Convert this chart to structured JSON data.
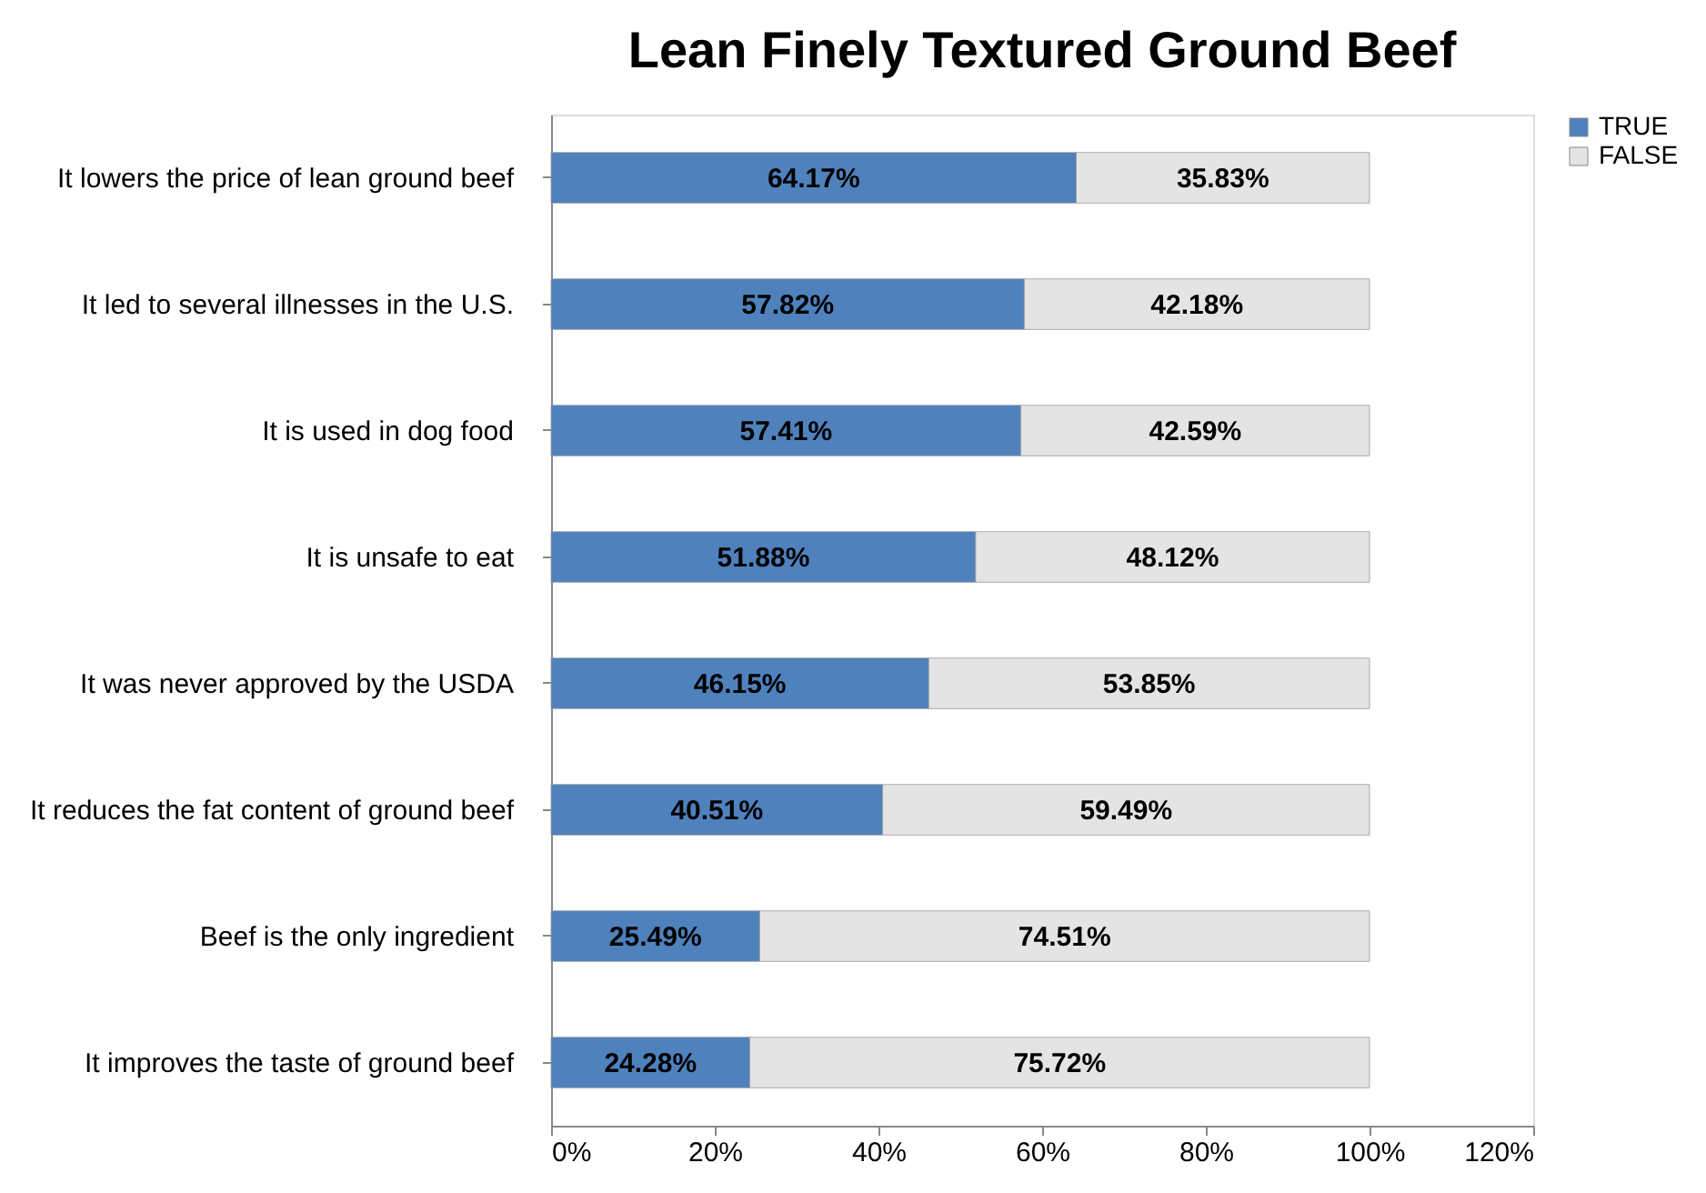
{
  "chart_data": {
    "type": "bar",
    "orientation": "horizontal",
    "stacked": true,
    "title": "Lean Finely Textured Ground Beef",
    "categories": [
      "It lowers the price of lean ground beef",
      "It led to several illnesses in the U.S.",
      "It is used in dog food",
      "It is unsafe to eat",
      "It was never approved by the USDA",
      "It reduces the fat content of ground beef",
      "Beef is the only ingredient",
      "It improves the taste of ground beef"
    ],
    "series": [
      {
        "name": "TRUE",
        "color": "#4f81bd",
        "values": [
          64.17,
          57.82,
          57.41,
          51.88,
          46.15,
          40.51,
          25.49,
          24.28
        ],
        "value_labels": [
          "64.17%",
          "57.82%",
          "57.41%",
          "51.88%",
          "46.15%",
          "40.51%",
          "25.49%",
          "24.28%"
        ]
      },
      {
        "name": "FALSE",
        "color": "#e4e4e4",
        "values": [
          35.83,
          42.18,
          42.59,
          48.12,
          53.85,
          59.49,
          74.51,
          75.72
        ],
        "value_labels": [
          "35.83%",
          "42.18%",
          "42.59%",
          "48.12%",
          "53.85%",
          "59.49%",
          "74.51%",
          "75.72%"
        ]
      }
    ],
    "xlim": [
      0,
      120
    ],
    "xticks": [
      {
        "value": 0,
        "label": "0%"
      },
      {
        "value": 20,
        "label": "20%"
      },
      {
        "value": 40,
        "label": "40%"
      },
      {
        "value": 60,
        "label": "60%"
      },
      {
        "value": 80,
        "label": "80%"
      },
      {
        "value": 100,
        "label": "100%"
      },
      {
        "value": 120,
        "label": "120%"
      }
    ],
    "legend": "right",
    "grid": false
  }
}
